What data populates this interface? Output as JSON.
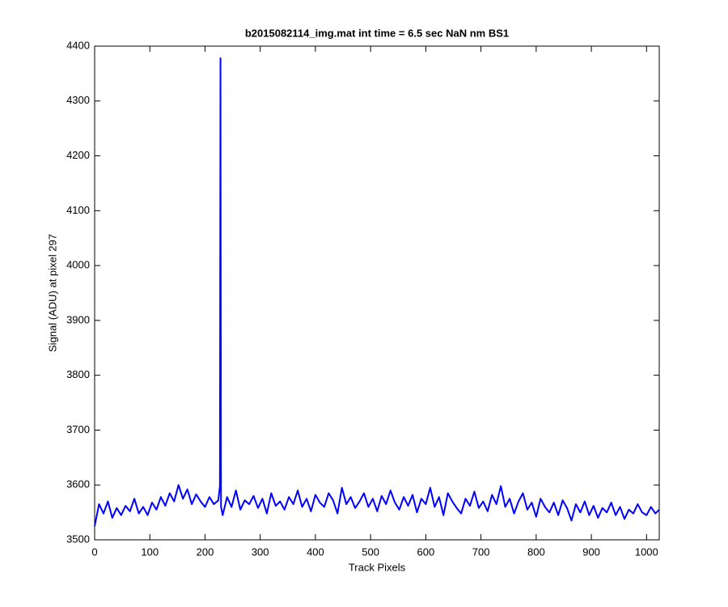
{
  "chart_data": {
    "type": "line",
    "title": "b2015082114_img.mat int time = 6.5 sec  NaN nm BS1",
    "xlabel": "Track Pixels",
    "ylabel": "Signal (ADU) at pixel 297",
    "xlim": [
      0,
      1023
    ],
    "ylim": [
      3500,
      4400
    ],
    "xticks": [
      0,
      100,
      200,
      300,
      400,
      500,
      600,
      700,
      800,
      900,
      1000
    ],
    "yticks": [
      3500,
      3600,
      3700,
      3800,
      3900,
      4000,
      4100,
      4200,
      4300,
      4400
    ],
    "grid": false,
    "x": [
      0,
      8,
      16,
      24,
      32,
      40,
      48,
      56,
      64,
      72,
      80,
      88,
      96,
      104,
      112,
      120,
      128,
      136,
      144,
      152,
      160,
      168,
      176,
      184,
      192,
      200,
      208,
      216,
      224,
      227,
      228,
      229,
      232,
      240,
      248,
      256,
      264,
      272,
      280,
      288,
      296,
      304,
      312,
      320,
      328,
      336,
      344,
      352,
      360,
      368,
      376,
      384,
      392,
      400,
      408,
      416,
      424,
      432,
      440,
      448,
      456,
      464,
      472,
      480,
      488,
      496,
      504,
      512,
      520,
      528,
      536,
      544,
      552,
      560,
      568,
      576,
      584,
      592,
      600,
      608,
      616,
      624,
      632,
      640,
      648,
      656,
      664,
      672,
      680,
      688,
      696,
      704,
      712,
      720,
      728,
      736,
      744,
      752,
      760,
      768,
      776,
      784,
      792,
      800,
      808,
      816,
      824,
      832,
      840,
      848,
      856,
      864,
      872,
      880,
      888,
      896,
      904,
      912,
      920,
      928,
      936,
      944,
      952,
      960,
      968,
      976,
      984,
      992,
      1000,
      1008,
      1016,
      1023
    ],
    "series": [
      {
        "color": "#0000ff",
        "values": [
          3525,
          3565,
          3548,
          3570,
          3540,
          3558,
          3545,
          3562,
          3552,
          3575,
          3548,
          3560,
          3545,
          3568,
          3555,
          3578,
          3562,
          3585,
          3570,
          3600,
          3575,
          3592,
          3565,
          3583,
          3570,
          3560,
          3578,
          3565,
          3572,
          3598,
          4378,
          3560,
          3545,
          3578,
          3560,
          3590,
          3555,
          3572,
          3565,
          3580,
          3558,
          3575,
          3548,
          3585,
          3562,
          3570,
          3555,
          3578,
          3565,
          3590,
          3560,
          3575,
          3552,
          3582,
          3568,
          3560,
          3585,
          3572,
          3548,
          3595,
          3565,
          3578,
          3558,
          3570,
          3585,
          3560,
          3575,
          3552,
          3580,
          3565,
          3590,
          3568,
          3555,
          3578,
          3562,
          3582,
          3550,
          3575,
          3565,
          3595,
          3560,
          3578,
          3545,
          3585,
          3570,
          3558,
          3548,
          3575,
          3562,
          3588,
          3558,
          3570,
          3552,
          3582,
          3565,
          3598,
          3560,
          3575,
          3548,
          3570,
          3585,
          3555,
          3568,
          3542,
          3575,
          3560,
          3550,
          3568,
          3545,
          3572,
          3558,
          3535,
          3565,
          3550,
          3570,
          3545,
          3562,
          3540,
          3558,
          3550,
          3568,
          3545,
          3560,
          3538,
          3555,
          3548,
          3565,
          3550,
          3545,
          3560,
          3548,
          3555
        ]
      }
    ]
  }
}
